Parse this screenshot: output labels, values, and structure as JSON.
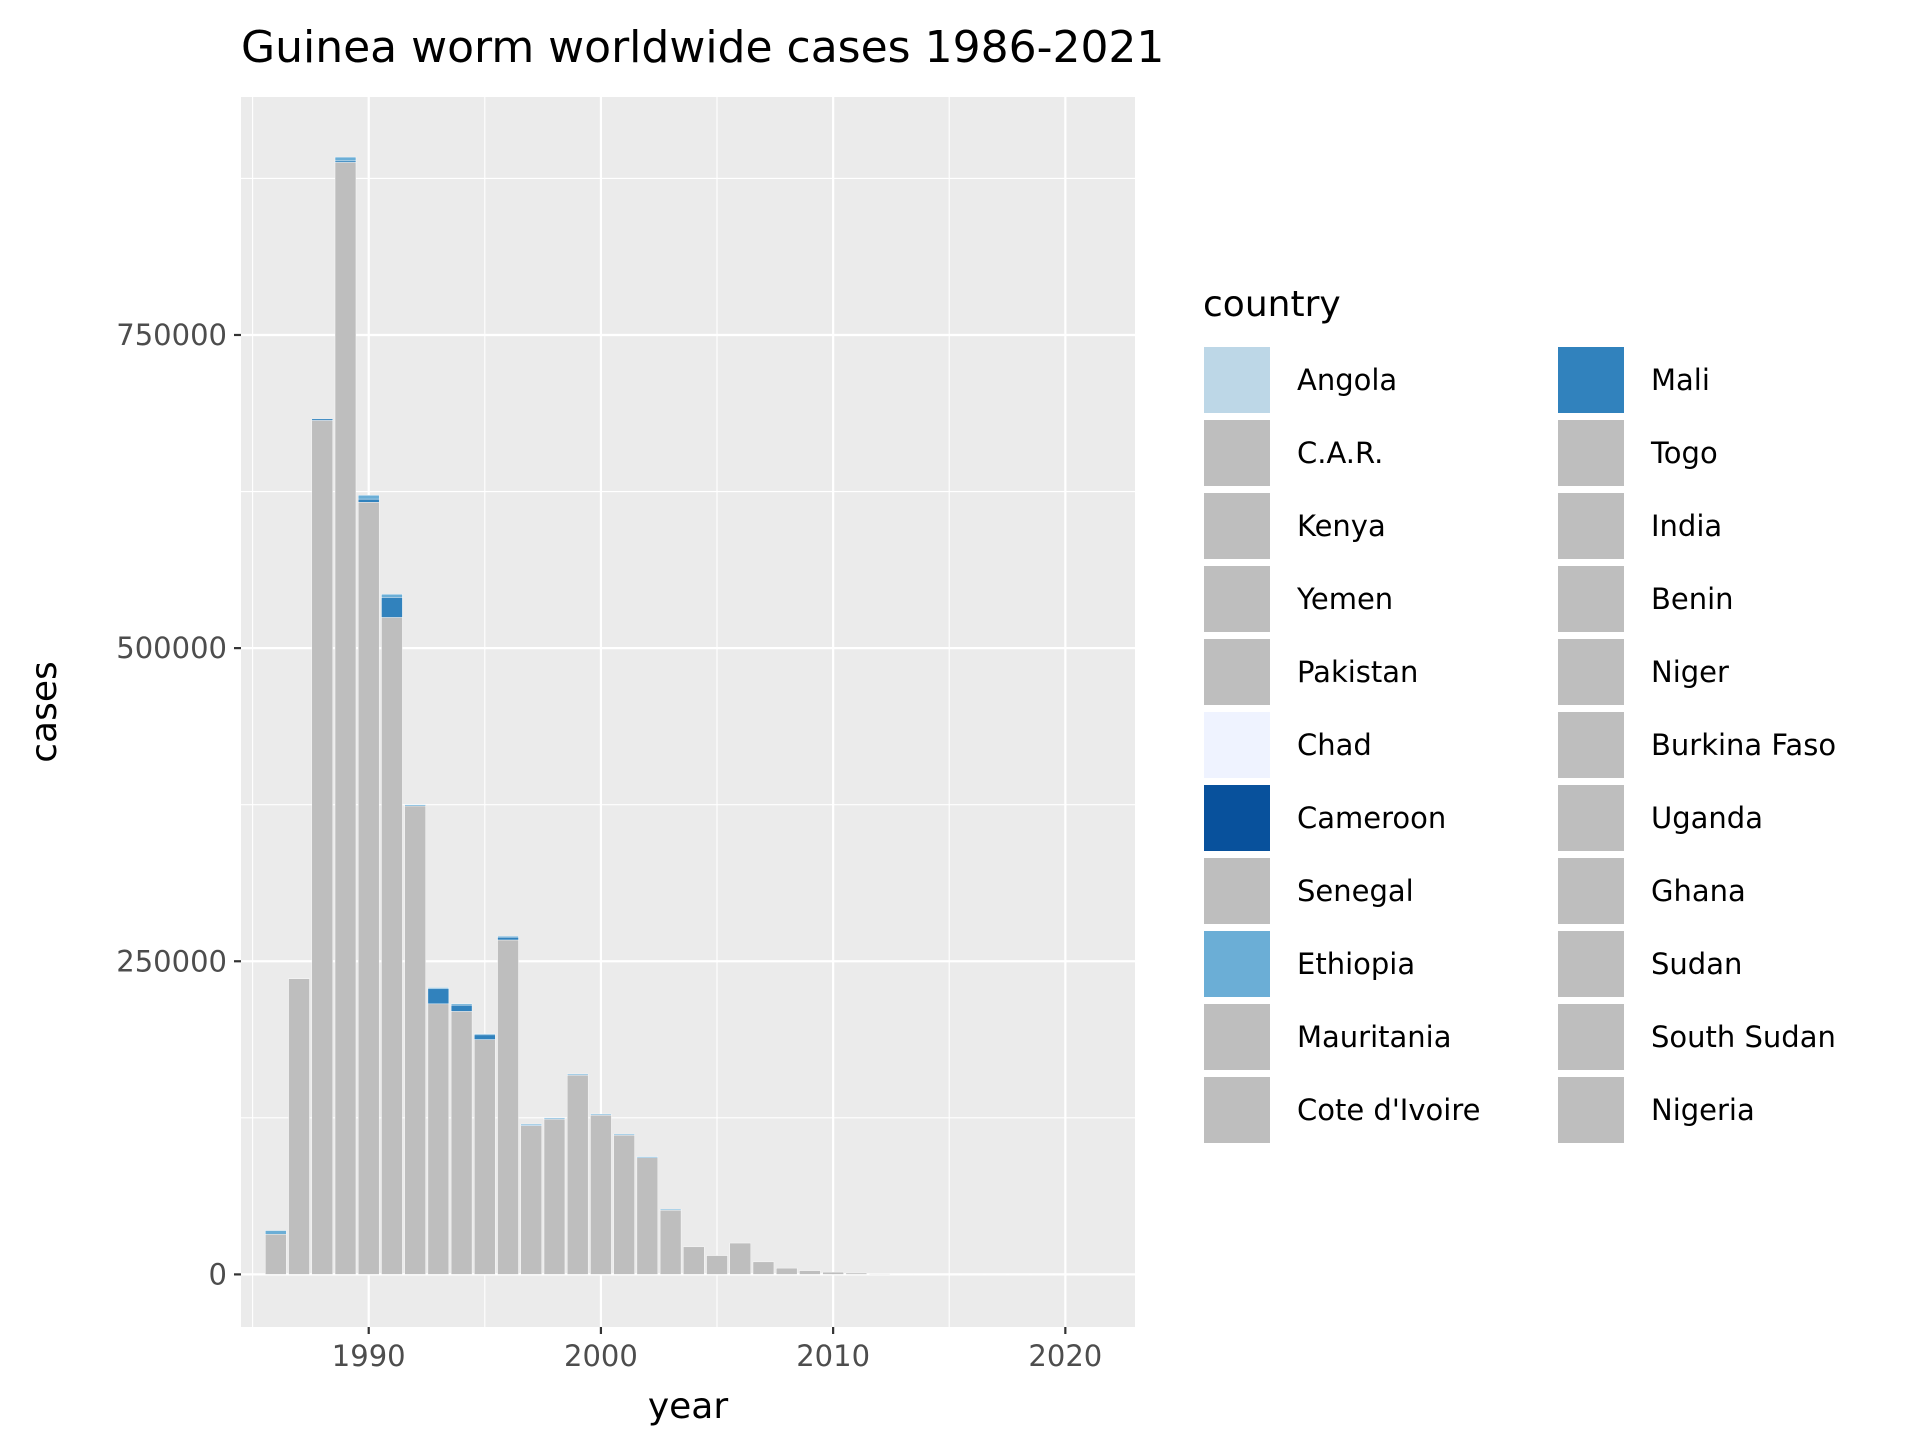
{
  "chart_data": {
    "type": "bar",
    "stacked": true,
    "title": "Guinea worm worldwide cases 1986-2021",
    "xlabel": "year",
    "ylabel": "cases",
    "xlim": [
      1984.5,
      2023
    ],
    "ylim": [
      -42000,
      940000
    ],
    "x_ticks": [
      1990,
      2000,
      2010,
      2020
    ],
    "y_ticks": [
      0,
      250000,
      500000,
      750000
    ],
    "x_tick_labels": [
      "1990",
      "2000",
      "2010",
      "2020"
    ],
    "y_tick_labels": [
      "0",
      "250000",
      "500000",
      "750000"
    ],
    "grid": true,
    "legend_position": "right",
    "x": [
      1986,
      1987,
      1988,
      1989,
      1990,
      1991,
      1992,
      1993,
      1994,
      1995,
      1996,
      1997,
      1998,
      1999,
      2000,
      2001,
      2002,
      2003,
      2004,
      2005,
      2006,
      2007,
      2008,
      2009,
      2010,
      2011,
      2012,
      2013,
      2014,
      2015,
      2016,
      2017,
      2018,
      2019,
      2020,
      2021
    ],
    "totals": [
      35000,
      236000,
      683000,
      892000,
      622000,
      543000,
      375000,
      229000,
      216000,
      192000,
      270000,
      120000,
      125000,
      160000,
      128000,
      112000,
      94000,
      52000,
      22000,
      15000,
      25000,
      10000,
      5000,
      3000,
      1800,
      1100,
      540,
      150,
      130,
      25,
      30,
      30,
      30,
      50,
      30,
      15
    ],
    "highlighted": {
      "Angola": [
        0,
        0,
        0,
        0,
        0,
        0,
        0,
        0,
        0,
        0,
        0,
        0,
        0,
        0,
        0,
        0,
        0,
        0,
        0,
        0,
        0,
        0,
        0,
        0,
        0,
        0,
        0,
        0,
        0,
        0,
        0,
        0,
        0,
        0,
        0,
        0
      ],
      "Chad": [
        0,
        0,
        0,
        0,
        0,
        0,
        0,
        0,
        0,
        0,
        0,
        0,
        0,
        0,
        0,
        0,
        0,
        0,
        0,
        0,
        0,
        0,
        0,
        0,
        0,
        0,
        0,
        0,
        0,
        0,
        0,
        0,
        0,
        0,
        0,
        0
      ],
      "Cameroon": [
        0,
        0,
        0,
        0,
        0,
        0,
        0,
        0,
        0,
        0,
        0,
        0,
        0,
        0,
        0,
        0,
        0,
        0,
        0,
        0,
        0,
        0,
        0,
        0,
        0,
        0,
        0,
        0,
        0,
        0,
        0,
        0,
        0,
        0,
        0,
        0
      ],
      "Ethiopia": [
        3000,
        0,
        0,
        3000,
        3000,
        2500,
        1000,
        1000,
        1000,
        500,
        500,
        500,
        400,
        300,
        200,
        100,
        50,
        50,
        0,
        0,
        0,
        0,
        0,
        0,
        0,
        0,
        0,
        0,
        0,
        0,
        0,
        0,
        0,
        0,
        0,
        0
      ],
      "Mali": [
        0,
        0,
        1200,
        1200,
        2500,
        16000,
        0,
        12000,
        5000,
        4000,
        2500,
        500,
        600,
        400,
        300,
        300,
        300,
        300,
        0,
        0,
        0,
        0,
        0,
        0,
        0,
        0,
        0,
        0,
        0,
        0,
        0,
        0,
        0,
        0,
        0,
        0
      ]
    },
    "series_colors": {
      "Angola": "#bdd7e7",
      "Chad": "#eff3ff",
      "Cameroon": "#08519c",
      "Ethiopia": "#6baed6",
      "Mali": "#3182bd",
      "other": "#bebebe"
    },
    "legend": {
      "title": "country",
      "entries": [
        {
          "name": "Angola",
          "color": "#bdd7e7"
        },
        {
          "name": "C.A.R.",
          "color": "#bebebe"
        },
        {
          "name": "Kenya",
          "color": "#bebebe"
        },
        {
          "name": "Yemen",
          "color": "#bebebe"
        },
        {
          "name": "Pakistan",
          "color": "#bebebe"
        },
        {
          "name": "Chad",
          "color": "#eff3ff"
        },
        {
          "name": "Cameroon",
          "color": "#08519c"
        },
        {
          "name": "Senegal",
          "color": "#bebebe"
        },
        {
          "name": "Ethiopia",
          "color": "#6baed6"
        },
        {
          "name": "Mauritania",
          "color": "#bebebe"
        },
        {
          "name": "Cote d'Ivoire",
          "color": "#bebebe"
        },
        {
          "name": "Mali",
          "color": "#3182bd"
        },
        {
          "name": "Togo",
          "color": "#bebebe"
        },
        {
          "name": "India",
          "color": "#bebebe"
        },
        {
          "name": "Benin",
          "color": "#bebebe"
        },
        {
          "name": "Niger",
          "color": "#bebebe"
        },
        {
          "name": "Burkina Faso",
          "color": "#bebebe"
        },
        {
          "name": "Uganda",
          "color": "#bebebe"
        },
        {
          "name": "Ghana",
          "color": "#bebebe"
        },
        {
          "name": "Sudan",
          "color": "#bebebe"
        },
        {
          "name": "South Sudan",
          "color": "#bebebe"
        },
        {
          "name": "Nigeria",
          "color": "#bebebe"
        }
      ]
    }
  }
}
